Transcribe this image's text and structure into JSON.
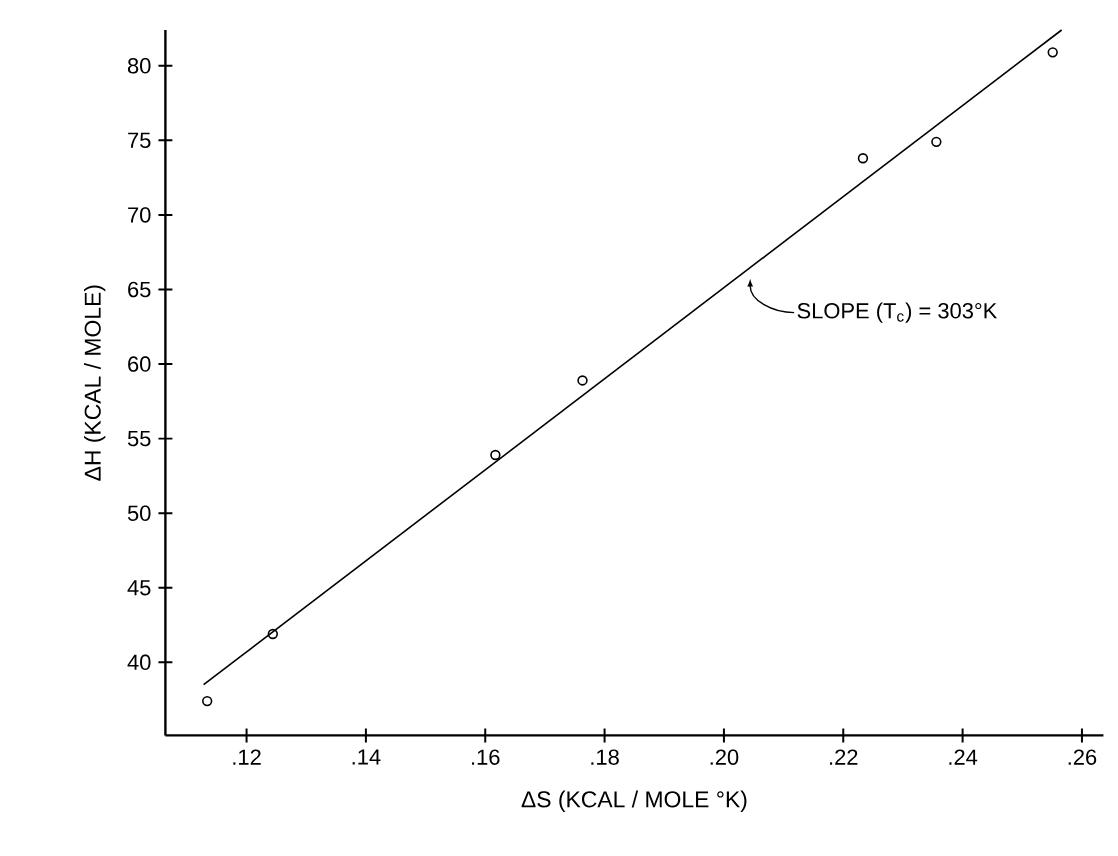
{
  "chart_data": {
    "type": "scatter",
    "xlabel": "ΔS (KCAL / MOLE °K)",
    "ylabel": "ΔH (KCAL / MOLE)",
    "marker": "circle",
    "xlim": [
      0.1064,
      0.2636
    ],
    "ylim": [
      35.1,
      82.4
    ],
    "xticks": [
      {
        "value": 0.12,
        "label": ".12"
      },
      {
        "value": 0.14,
        "label": ".14"
      },
      {
        "value": 0.16,
        "label": ".16"
      },
      {
        "value": 0.18,
        "label": ".18"
      },
      {
        "value": 0.2,
        "label": ".20"
      },
      {
        "value": 0.22,
        "label": ".22"
      },
      {
        "value": 0.24,
        "label": ".24"
      },
      {
        "value": 0.26,
        "label": ".26"
      }
    ],
    "yticks": [
      40,
      45,
      50,
      55,
      60,
      65,
      70,
      75,
      80
    ],
    "series": [
      {
        "color": "#000000",
        "x": [
          0.1134,
          0.1244,
          0.1617,
          0.1763,
          0.2233,
          0.2356,
          0.2551
        ],
        "values": [
          37.4,
          41.9,
          53.9,
          58.9,
          73.8,
          74.9,
          80.9
        ]
      },
      {
        "type": "line",
        "color": "#000000",
        "marker": "none",
        "x": [
          0.1128,
          0.2566
        ],
        "values": [
          38.5,
          82.4
        ]
      }
    ],
    "annotations": [
      {
        "text": "SLOPE (T$_{c}$) = 303°K",
        "x": 0.2044,
        "y": 66.4
      }
    ]
  }
}
